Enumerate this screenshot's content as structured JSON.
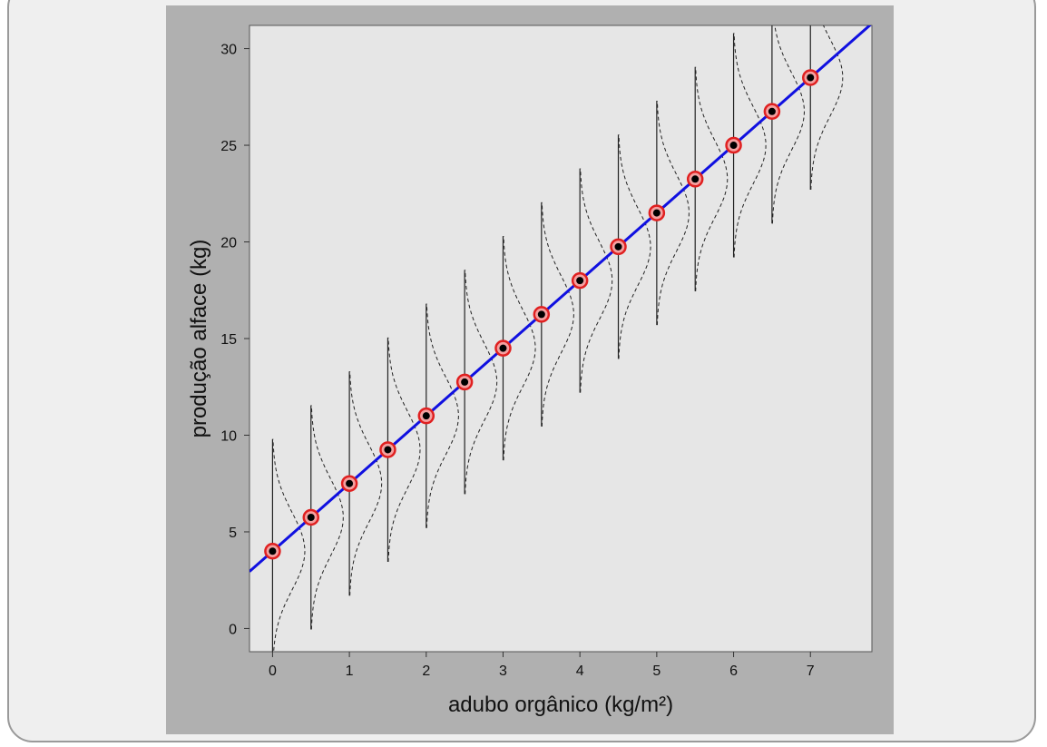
{
  "chart_data": {
    "type": "line",
    "xlabel": "adubo orgânico (kg/m²)",
    "ylabel": "produção alface (kg)",
    "xlim": [
      -0.3,
      7.8
    ],
    "ylim": [
      -1.2,
      31.2
    ],
    "xticks": [
      0,
      1,
      2,
      3,
      4,
      5,
      6,
      7
    ],
    "yticks": [
      0,
      5,
      10,
      15,
      20,
      25,
      30
    ],
    "grid": false,
    "legend": "none",
    "line": {
      "intercept": 4.0,
      "slope": 3.5,
      "color": "#1010e0"
    },
    "points": {
      "x": [
        0,
        0.5,
        1,
        1.5,
        2,
        2.5,
        3,
        3.5,
        4,
        4.5,
        5,
        5.5,
        6,
        6.5,
        7
      ],
      "y": [
        4.0,
        5.75,
        7.5,
        9.25,
        11.0,
        12.75,
        14.5,
        16.25,
        18.0,
        19.75,
        21.5,
        23.25,
        25.0,
        26.75,
        28.5
      ],
      "marker_color": "#000000",
      "ring_color": "#e02020"
    },
    "distributions": {
      "type": "normal",
      "sd": 2.0,
      "range_sd": 2.9,
      "line_style": "dashed"
    },
    "colors": {
      "panel": "#e6e6e6",
      "frame": "#b0b0b0"
    }
  }
}
